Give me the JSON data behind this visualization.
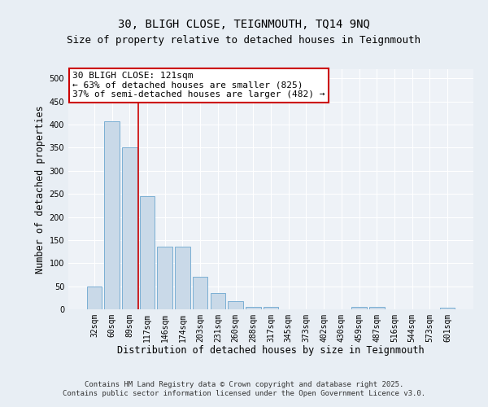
{
  "title_line1": "30, BLIGH CLOSE, TEIGNMOUTH, TQ14 9NQ",
  "title_line2": "Size of property relative to detached houses in Teignmouth",
  "xlabel": "Distribution of detached houses by size in Teignmouth",
  "ylabel": "Number of detached properties",
  "categories": [
    "32sqm",
    "60sqm",
    "89sqm",
    "117sqm",
    "146sqm",
    "174sqm",
    "203sqm",
    "231sqm",
    "260sqm",
    "288sqm",
    "317sqm",
    "345sqm",
    "373sqm",
    "402sqm",
    "430sqm",
    "459sqm",
    "487sqm",
    "516sqm",
    "544sqm",
    "573sqm",
    "601sqm"
  ],
  "values": [
    50,
    408,
    350,
    245,
    135,
    135,
    70,
    35,
    18,
    6,
    6,
    0,
    0,
    0,
    0,
    5,
    5,
    0,
    0,
    0,
    3
  ],
  "bar_color": "#c9d9e8",
  "bar_edge_color": "#7bafd4",
  "vline_x": 2.5,
  "vline_color": "#cc0000",
  "annotation_text": "30 BLIGH CLOSE: 121sqm\n← 63% of detached houses are smaller (825)\n37% of semi-detached houses are larger (482) →",
  "annotation_box_color": "#ffffff",
  "annotation_box_edge_color": "#cc0000",
  "ylim": [
    0,
    520
  ],
  "yticks": [
    0,
    50,
    100,
    150,
    200,
    250,
    300,
    350,
    400,
    450,
    500
  ],
  "bg_color": "#e8eef4",
  "plot_bg_color": "#eef2f7",
  "grid_color": "#ffffff",
  "footer_line1": "Contains HM Land Registry data © Crown copyright and database right 2025.",
  "footer_line2": "Contains public sector information licensed under the Open Government Licence v3.0.",
  "title_fontsize": 10,
  "subtitle_fontsize": 9,
  "tick_fontsize": 7,
  "label_fontsize": 8.5,
  "annotation_fontsize": 8,
  "footer_fontsize": 6.5
}
